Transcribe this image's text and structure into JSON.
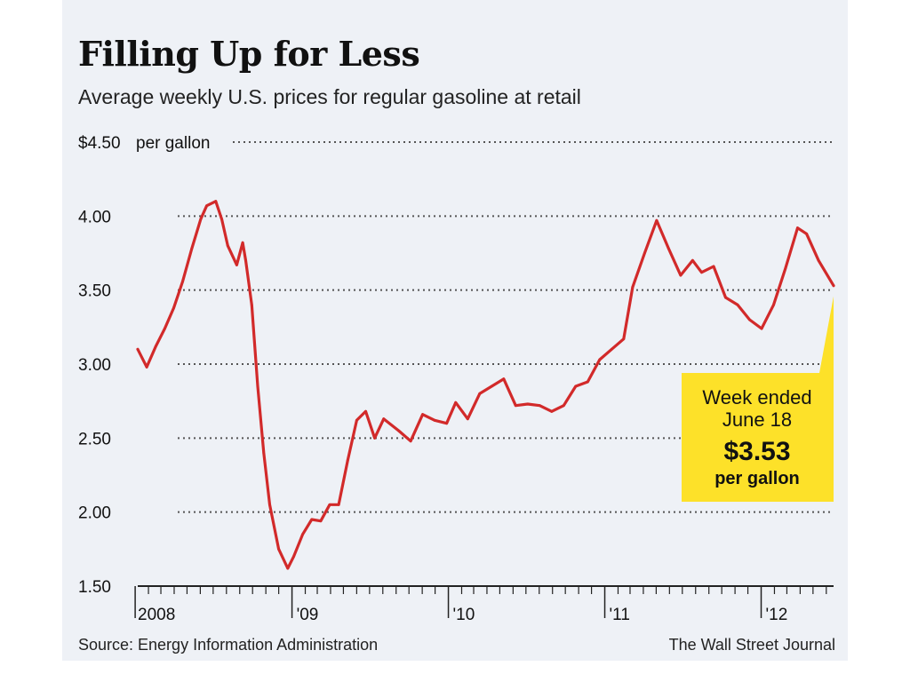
{
  "chart_data": {
    "type": "line",
    "title": "Filling Up for Less",
    "subtitle": "Average weekly U.S. prices for regular gasoline at retail",
    "ylabel": "per gallon",
    "ylim": [
      1.5,
      4.5
    ],
    "yticks": [
      {
        "value": 4.5,
        "label": "$4.50"
      },
      {
        "value": 4.0,
        "label": "4.00"
      },
      {
        "value": 3.5,
        "label": "3.50"
      },
      {
        "value": 3.0,
        "label": "3.00"
      },
      {
        "value": 2.5,
        "label": "2.50"
      },
      {
        "value": 2.0,
        "label": "2.00"
      },
      {
        "value": 1.5,
        "label": "1.50"
      }
    ],
    "xlim": [
      "2008-01-07",
      "2012-06-18"
    ],
    "xticks": [
      {
        "date": "2008-01-01",
        "label": "2008"
      },
      {
        "date": "2009-01-01",
        "label": "'09"
      },
      {
        "date": "2010-01-01",
        "label": "'10"
      },
      {
        "date": "2011-01-01",
        "label": "'11"
      },
      {
        "date": "2012-01-01",
        "label": "'12"
      }
    ],
    "grid": true,
    "color": "#d22a2a",
    "series": [
      {
        "x": [
          "2008-01-07",
          "2008-01-28",
          "2008-02-18",
          "2008-03-10",
          "2008-03-31",
          "2008-04-21",
          "2008-05-12",
          "2008-06-02",
          "2008-06-16",
          "2008-07-07",
          "2008-07-21",
          "2008-08-04",
          "2008-08-25",
          "2008-09-08",
          "2008-09-15",
          "2008-09-29",
          "2008-10-13",
          "2008-10-27",
          "2008-11-10",
          "2008-12-01",
          "2008-12-22",
          "2009-01-05",
          "2009-01-26",
          "2009-02-16",
          "2009-03-09",
          "2009-03-30",
          "2009-04-20",
          "2009-05-11",
          "2009-06-01",
          "2009-06-22",
          "2009-07-13",
          "2009-08-03",
          "2009-09-07",
          "2009-10-05",
          "2009-11-02",
          "2009-11-30",
          "2009-12-28",
          "2010-01-18",
          "2010-02-15",
          "2010-03-15",
          "2010-04-12",
          "2010-05-10",
          "2010-06-07",
          "2010-07-05",
          "2010-08-02",
          "2010-08-30",
          "2010-09-27",
          "2010-10-25",
          "2010-11-22",
          "2010-12-20",
          "2011-01-17",
          "2011-02-14",
          "2011-03-07",
          "2011-04-04",
          "2011-05-02",
          "2011-05-30",
          "2011-06-27",
          "2011-07-25",
          "2011-08-15",
          "2011-09-12",
          "2011-10-10",
          "2011-11-07",
          "2011-12-05",
          "2012-01-02",
          "2012-01-30",
          "2012-02-27",
          "2012-03-26",
          "2012-04-16",
          "2012-05-14",
          "2012-06-18"
        ],
        "values": [
          3.1,
          2.98,
          3.12,
          3.24,
          3.38,
          3.56,
          3.78,
          3.98,
          4.07,
          4.1,
          3.98,
          3.8,
          3.67,
          3.82,
          3.7,
          3.4,
          2.85,
          2.4,
          2.05,
          1.75,
          1.62,
          1.7,
          1.85,
          1.95,
          1.94,
          2.05,
          2.05,
          2.35,
          2.62,
          2.68,
          2.5,
          2.63,
          2.55,
          2.48,
          2.66,
          2.62,
          2.6,
          2.74,
          2.63,
          2.8,
          2.85,
          2.9,
          2.72,
          2.73,
          2.72,
          2.68,
          2.72,
          2.85,
          2.88,
          3.03,
          3.1,
          3.17,
          3.52,
          3.75,
          3.97,
          3.78,
          3.6,
          3.7,
          3.62,
          3.66,
          3.45,
          3.4,
          3.3,
          3.24,
          3.4,
          3.65,
          3.92,
          3.88,
          3.7,
          3.53
        ]
      }
    ]
  },
  "callout": {
    "line1": "Week ended",
    "line2": "June 18",
    "value": "$3.53",
    "unit": "per gallon",
    "color": "#fde129"
  },
  "footer": {
    "source": "Source: Energy Information Administration",
    "credit": "The Wall Street Journal"
  }
}
